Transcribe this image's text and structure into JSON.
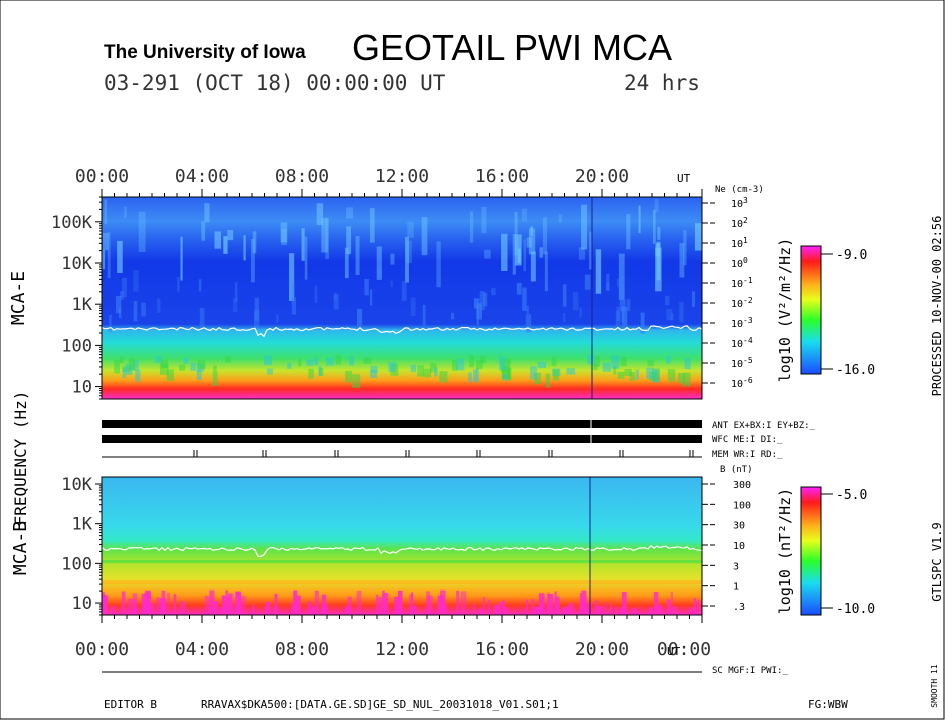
{
  "header": {
    "institution": "The University of Iowa",
    "title": "GEOTAIL PWI MCA",
    "date_line": "03-291 (OCT 18) 00:00:00 UT",
    "duration": "24 hrs"
  },
  "right_margin": {
    "processed": "PROCESSED 10-NOV-00  02:56",
    "version": "GTLSPC  V1.9",
    "smooth": "SMOOTH 11"
  },
  "axis_label_left": "FREQUENCY (Hz)",
  "time_axis": {
    "ticks_top": [
      "00:00",
      "04:00",
      "08:00",
      "12:00",
      "16:00",
      "20:00"
    ],
    "ticks_bottom": [
      "00:00",
      "04:00",
      "08:00",
      "12:00",
      "16:00",
      "20:00",
      "00:00"
    ],
    "unit": "UT"
  },
  "chart_data": [
    {
      "type": "heatmap",
      "panel": "MCA-E",
      "label": "MCA-E",
      "y_ticks": [
        "100K",
        "10K",
        "1K",
        "100",
        "10"
      ],
      "y_log_range_hz": [
        5,
        400000
      ],
      "right_axis": {
        "label": "Ne (cm-3)",
        "ticks": [
          "10^3",
          "10^2",
          "10^1",
          "10^0",
          "10^-1",
          "10^-2",
          "10^-3",
          "10^-4",
          "10^-5",
          "10^-6"
        ]
      },
      "colorbar": {
        "label": "log10 (V²/m²/Hz)",
        "max": "-9.0",
        "min": "-16.0"
      }
    },
    {
      "type": "heatmap",
      "panel": "MCA-B",
      "label": "MCA-B",
      "y_ticks": [
        "10K",
        "1K",
        "100",
        "10"
      ],
      "y_log_range_hz": [
        5,
        15000
      ],
      "right_axis": {
        "label": "B (nT)",
        "ticks": [
          "300",
          "100",
          "30",
          "10",
          "3",
          "1",
          ".3"
        ]
      },
      "colorbar": {
        "label": "log10 (nT²/Hz)",
        "max": "-5.0",
        "min": "-10.0"
      }
    }
  ],
  "status": {
    "ant": "ANT EX+BX:I  EY+BZ:_",
    "wfc": "WFC ME:I    DI:_",
    "mem": "MEM WR:I    RD:_",
    "sc": "SC MGF:I   PWI:_"
  },
  "footer": {
    "editor": "EDITOR B",
    "path": "RRAVAX$DKA500:[DATA.GE.SD]GE_SD_NUL_20031018_V01.S01;1",
    "fg": "FG:WBW"
  }
}
